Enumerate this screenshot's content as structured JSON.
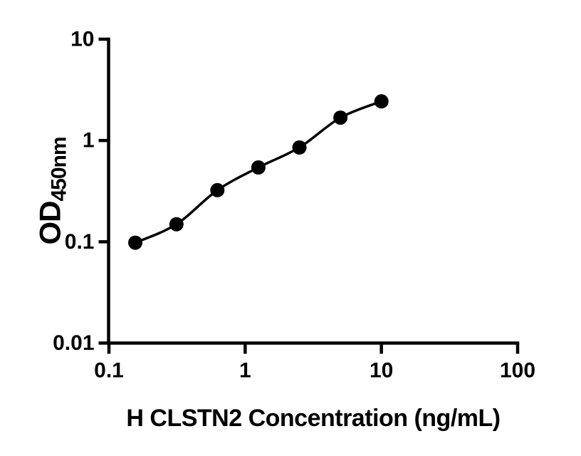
{
  "figure": {
    "background": "#ffffff",
    "ink_color": "#000000"
  },
  "chart_data": {
    "type": "scatter",
    "subtype": "ELISA standard curve, smooth fit line through filled circle markers",
    "title": "",
    "xlabel": "H CLSTN2 Concentration (ng/mL)",
    "ylabel_main": "OD",
    "ylabel_sub": "450nm",
    "x_scale": "log10",
    "y_scale": "log10",
    "xlim": [
      0.1,
      100
    ],
    "ylim": [
      0.01,
      10
    ],
    "x_ticks": [
      0.1,
      1,
      10,
      100
    ],
    "x_tick_labels": [
      "0.1",
      "1",
      "10",
      "100"
    ],
    "y_ticks": [
      10,
      1,
      0.1,
      0.01
    ],
    "y_tick_labels": [
      "10",
      "1",
      "0.1",
      "0.01"
    ],
    "grid": false,
    "legend": null,
    "marker_color": "#000000",
    "line_color": "#000000",
    "series": [
      {
        "name": "standard-curve",
        "marker": "filled-circle",
        "line": "smooth",
        "x": [
          0.156,
          0.313,
          0.625,
          1.25,
          2.5,
          5,
          10
        ],
        "y": [
          0.098,
          0.149,
          0.323,
          0.542,
          0.853,
          1.68,
          2.43
        ]
      }
    ]
  }
}
